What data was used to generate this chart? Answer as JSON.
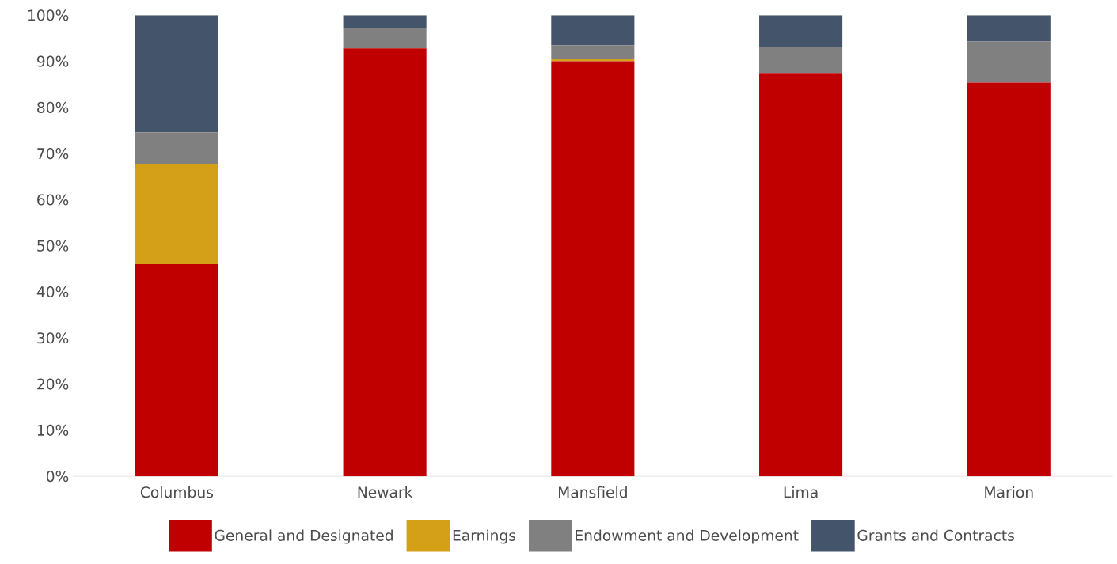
{
  "chart_data": {
    "type": "bar",
    "stacked": true,
    "categories": [
      "Columbus",
      "Newark",
      "Mansfield",
      "Lima",
      "Marion"
    ],
    "series": [
      {
        "name": "General and Designated",
        "color": "#c00000",
        "values": [
          46.0,
          92.8,
          90.0,
          87.5,
          85.4
        ]
      },
      {
        "name": "Earnings",
        "color": "#d4a017",
        "values": [
          21.8,
          0,
          0.5,
          0,
          0
        ]
      },
      {
        "name": "Endowment and Development",
        "color": "#808080",
        "values": [
          6.8,
          4.5,
          3.0,
          5.6,
          8.9
        ]
      },
      {
        "name": "Grants and Contracts",
        "color": "#44546a",
        "values": [
          25.4,
          2.7,
          6.5,
          6.9,
          5.7
        ]
      }
    ],
    "ylim": [
      0,
      100
    ],
    "yticks": [
      {
        "value": 0,
        "label": "0%"
      },
      {
        "value": 10,
        "label": "10%"
      },
      {
        "value": 20,
        "label": "20%"
      },
      {
        "value": 30,
        "label": "30%"
      },
      {
        "value": 40,
        "label": "40%"
      },
      {
        "value": 50,
        "label": "50%"
      },
      {
        "value": 60,
        "label": "60%"
      },
      {
        "value": 70,
        "label": "70%"
      },
      {
        "value": 80,
        "label": "80%"
      },
      {
        "value": 90,
        "label": "90%"
      },
      {
        "value": 100,
        "label": "100%"
      }
    ],
    "legend": "bottom"
  }
}
